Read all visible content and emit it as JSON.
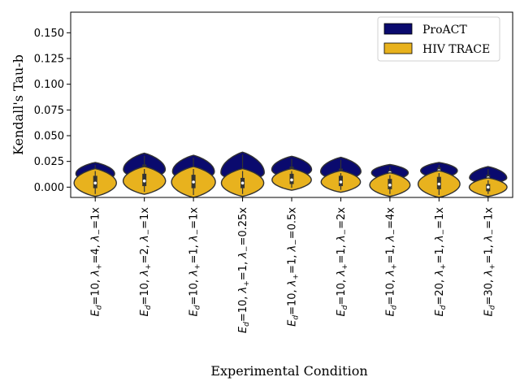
{
  "chart_data": {
    "type": "violin",
    "title": "",
    "xlabel": "Experimental Condition",
    "ylabel": "Kendall's Tau-b",
    "ylim": [
      -0.01,
      0.17
    ],
    "yticks": [
      "0.000",
      "0.025",
      "0.050",
      "0.075",
      "0.100",
      "0.125",
      "0.150"
    ],
    "ytick_values": [
      0,
      0.025,
      0.05,
      0.075,
      0.1,
      0.125,
      0.15
    ],
    "legend_position": "top-right",
    "categories": [
      {
        "Ed": "10",
        "lp": "4",
        "lm": "1x"
      },
      {
        "Ed": "10",
        "lp": "2",
        "lm": "1x"
      },
      {
        "Ed": "10",
        "lp": "1",
        "lm": "1x"
      },
      {
        "Ed": "10",
        "lp": "1",
        "lm": "0.25x"
      },
      {
        "Ed": "10",
        "lp": "1",
        "lm": "0.5x"
      },
      {
        "Ed": "10",
        "lp": "1",
        "lm": "2x"
      },
      {
        "Ed": "10",
        "lp": "1",
        "lm": "4x"
      },
      {
        "Ed": "20",
        "lp": "1",
        "lm": "1x"
      },
      {
        "Ed": "30",
        "lp": "1",
        "lm": "1x"
      }
    ],
    "series": [
      {
        "name": "ProACT",
        "color": "#0a0a6e",
        "stats": [
          {
            "min": 0.004,
            "q1": 0.009,
            "median": 0.013,
            "q3": 0.016,
            "max": 0.024
          },
          {
            "min": 0.007,
            "q1": 0.012,
            "median": 0.017,
            "q3": 0.022,
            "max": 0.033
          },
          {
            "min": 0.005,
            "q1": 0.011,
            "median": 0.015,
            "q3": 0.019,
            "max": 0.031
          },
          {
            "min": 0.005,
            "q1": 0.009,
            "median": 0.014,
            "q3": 0.018,
            "max": 0.034
          },
          {
            "min": 0.008,
            "q1": 0.013,
            "median": 0.017,
            "q3": 0.02,
            "max": 0.03
          },
          {
            "min": 0.006,
            "q1": 0.011,
            "median": 0.015,
            "q3": 0.018,
            "max": 0.029
          },
          {
            "min": 0.006,
            "q1": 0.011,
            "median": 0.014,
            "q3": 0.016,
            "max": 0.022
          },
          {
            "min": 0.008,
            "q1": 0.012,
            "median": 0.016,
            "q3": 0.019,
            "max": 0.024
          },
          {
            "min": 0.003,
            "q1": 0.007,
            "median": 0.009,
            "q3": 0.012,
            "max": 0.02
          }
        ]
      },
      {
        "name": "HIV TRACE",
        "color": "#e8b21e",
        "stats": [
          {
            "min": -0.009,
            "q1": -0.001,
            "median": 0.004,
            "q3": 0.011,
            "max": 0.018
          },
          {
            "min": -0.007,
            "q1": 0.001,
            "median": 0.006,
            "q3": 0.013,
            "max": 0.02
          },
          {
            "min": -0.01,
            "q1": -0.001,
            "median": 0.005,
            "q3": 0.012,
            "max": 0.02
          },
          {
            "min": -0.009,
            "q1": -0.001,
            "median": 0.004,
            "q3": 0.009,
            "max": 0.018
          },
          {
            "min": -0.003,
            "q1": 0.003,
            "median": 0.007,
            "q3": 0.013,
            "max": 0.018
          },
          {
            "min": -0.005,
            "q1": 0.001,
            "median": 0.005,
            "q3": 0.011,
            "max": 0.016
          },
          {
            "min": -0.009,
            "q1": -0.002,
            "median": 0.002,
            "q3": 0.008,
            "max": 0.014
          },
          {
            "min": -0.01,
            "q1": -0.002,
            "median": 0.003,
            "q3": 0.01,
            "max": 0.016
          },
          {
            "min": -0.009,
            "q1": -0.004,
            "median": 0.0,
            "q3": 0.003,
            "max": 0.009
          }
        ]
      }
    ]
  }
}
